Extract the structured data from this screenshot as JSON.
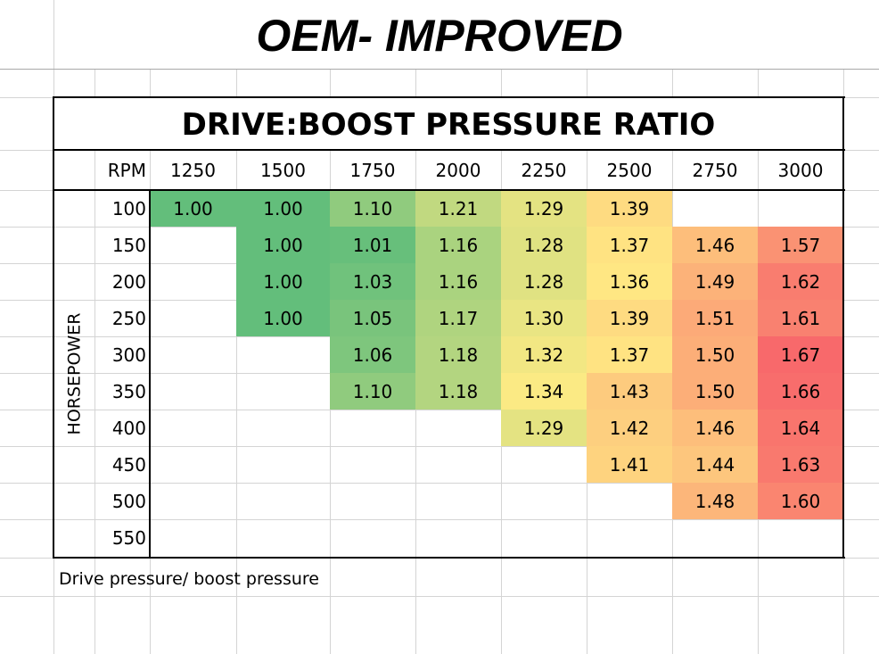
{
  "page_title": "OEM- IMPROVED",
  "note": "Drive pressure/ boost pressure",
  "chart_data": {
    "type": "heatmap",
    "title": "DRIVE:BOOST PRESSURE RATIO",
    "xlabel": "RPM",
    "ylabel": "HORSEPOWER",
    "x": [
      "1250",
      "1500",
      "1750",
      "2000",
      "2250",
      "2500",
      "2750",
      "3000"
    ],
    "y": [
      "100",
      "150",
      "200",
      "250",
      "300",
      "350",
      "400",
      "450",
      "500",
      "550"
    ],
    "values": [
      [
        "1.00",
        "1.00",
        "1.10",
        "1.21",
        "1.29",
        "1.39",
        null,
        null
      ],
      [
        null,
        "1.00",
        "1.01",
        "1.16",
        "1.28",
        "1.37",
        "1.46",
        "1.57"
      ],
      [
        null,
        "1.00",
        "1.03",
        "1.16",
        "1.28",
        "1.36",
        "1.49",
        "1.62"
      ],
      [
        null,
        "1.00",
        "1.05",
        "1.17",
        "1.30",
        "1.39",
        "1.51",
        "1.61"
      ],
      [
        null,
        null,
        "1.06",
        "1.18",
        "1.32",
        "1.37",
        "1.50",
        "1.67"
      ],
      [
        null,
        null,
        "1.10",
        "1.18",
        "1.34",
        "1.43",
        "1.50",
        "1.66"
      ],
      [
        null,
        null,
        null,
        null,
        "1.29",
        "1.42",
        "1.46",
        "1.64"
      ],
      [
        null,
        null,
        null,
        null,
        null,
        "1.41",
        "1.44",
        "1.63"
      ],
      [
        null,
        null,
        null,
        null,
        null,
        null,
        "1.48",
        "1.60"
      ],
      [
        null,
        null,
        null,
        null,
        null,
        null,
        null,
        null
      ]
    ],
    "color_scale": {
      "min": "#63BE7B",
      "mid": "#FFEB84",
      "max": "#F8696B"
    }
  }
}
